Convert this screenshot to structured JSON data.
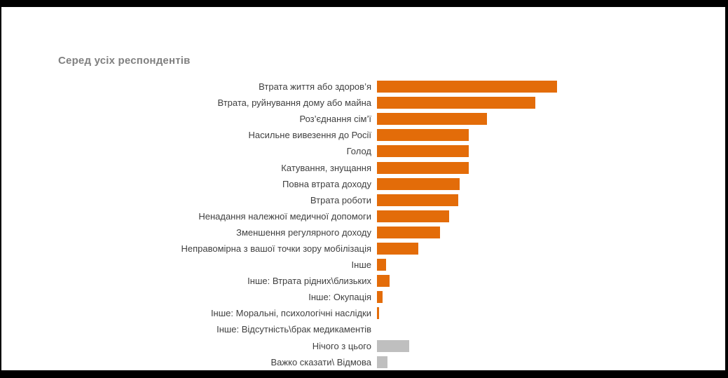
{
  "page": {
    "background_color": "#000000",
    "canvas_color": "#FFFFFF"
  },
  "chart": {
    "title": "Серед усіх респондентів"
  },
  "chart_data": {
    "type": "bar",
    "orientation": "horizontal",
    "title": "Серед усіх респондентів",
    "categories": [
      "Втрата життя або здоров’я",
      "Втрата, руйнування дому або майна",
      "Роз’єднання сім’ї",
      "Насильне вивезення до Росії",
      "Голод",
      "Катування, знущання",
      "Повна втрата доходу",
      "Втрата роботи",
      "Ненадання належної медичної допомоги",
      "Зменшення регулярного доходу",
      "Неправомірна з вашої точки зору мобілізація",
      "Інше",
      "Інше: Втрата рідних\\близьких",
      "Інше: Окупація",
      "Інше: Моральні, психологічні наслідки",
      "Інше: Відсутність\\брак медикаментів",
      "Нічого з цього",
      "Важко сказати\\ Відмова"
    ],
    "values": [
      100,
      88,
      61,
      51,
      51,
      51,
      46,
      45,
      40,
      35,
      23,
      5,
      7,
      3,
      1,
      0,
      18,
      6
    ],
    "units": "relative bar length, longest bar = 100 (no numeric data labels shown in chart)",
    "bar_color": [
      "orange",
      "orange",
      "orange",
      "orange",
      "orange",
      "orange",
      "orange",
      "orange",
      "orange",
      "orange",
      "orange",
      "orange",
      "orange",
      "orange",
      "orange",
      "orange",
      "gray",
      "gray"
    ],
    "colors": {
      "orange": "#E36C09",
      "gray": "#BFBFBF",
      "title": "#808080",
      "label": "#404040"
    },
    "xlim": [
      0,
      100
    ],
    "value_labels_visible": false,
    "axes_visible": false,
    "grid": false,
    "legend": false
  }
}
